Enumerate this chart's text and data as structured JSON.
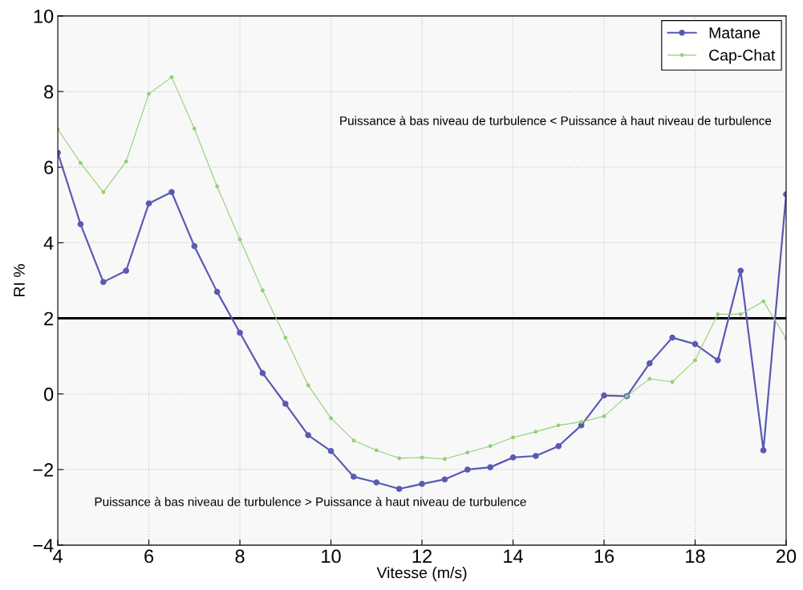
{
  "chart_data": {
    "type": "line",
    "xlabel": "Vitesse (m/s)",
    "ylabel": "RI %",
    "x": [
      4,
      4.5,
      5,
      5.5,
      6,
      6.5,
      7,
      7.5,
      8,
      8.5,
      9,
      9.5,
      10,
      10.5,
      11,
      11.5,
      12,
      12.5,
      13,
      13.5,
      14,
      14.5,
      15,
      15.5,
      16,
      16.5,
      17,
      17.5,
      18,
      18.5,
      19,
      19.5,
      20
    ],
    "series": [
      {
        "name": "Matane",
        "color": "#5a5ab4",
        "values": [
          6.38,
          4.49,
          2.96,
          3.26,
          5.04,
          5.34,
          3.91,
          2.7,
          1.62,
          0.55,
          -0.26,
          -1.09,
          -1.51,
          -2.19,
          -2.34,
          -2.51,
          -2.38,
          -2.26,
          -2.0,
          -1.94,
          -1.68,
          -1.64,
          -1.38,
          -0.83,
          -0.04,
          -0.06,
          0.81,
          1.49,
          1.32,
          0.89,
          3.26,
          -1.49,
          5.28
        ]
      },
      {
        "name": "Cap-Chat",
        "color": "#94d074",
        "values": [
          7.0,
          6.11,
          5.34,
          6.15,
          7.94,
          8.38,
          7.02,
          5.49,
          4.09,
          2.74,
          1.49,
          0.23,
          -0.64,
          -1.23,
          -1.49,
          -1.7,
          -1.68,
          -1.72,
          -1.55,
          -1.38,
          -1.15,
          -1.0,
          -0.83,
          -0.74,
          -0.59,
          -0.06,
          0.4,
          0.32,
          0.89,
          2.11,
          2.11,
          2.45,
          1.47
        ]
      }
    ],
    "xlim": [
      4,
      20
    ],
    "xticks": [
      4,
      6,
      8,
      10,
      12,
      14,
      16,
      18,
      20
    ],
    "ylim": [
      -4,
      10
    ],
    "yticks": [
      {
        "value": -4,
        "label": "−4"
      },
      {
        "value": -2,
        "label": "−2"
      },
      0,
      2,
      4,
      6,
      8,
      10
    ],
    "ref_lines": [
      {
        "axis": "y",
        "value": 2,
        "color": "#000000"
      }
    ],
    "annotations": [
      "Puissance à bas niveau de turbulence < Puissance à haut niveau de turbulence",
      "Puissance à bas niveau de turbulence > Puissance à haut niveau de turbulence"
    ],
    "grid": true,
    "legend": "top right",
    "marker": "circle",
    "line_style": "solid"
  }
}
